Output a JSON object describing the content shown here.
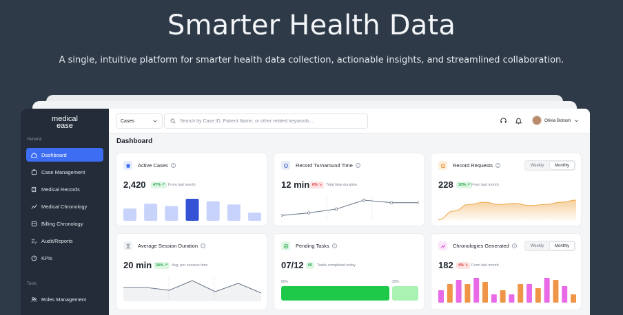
{
  "hero": {
    "title": "Smarter Health Data",
    "subtitle": "A single, intuitive platform for smarter health data collection, actionable insights, and streamlined collaboration."
  },
  "sidebar": {
    "logo_line1": "medical",
    "logo_line2": "ease",
    "section_general": "General",
    "section_tools": "Tools",
    "items": [
      {
        "label": "Dashboard",
        "icon": "home-icon",
        "active": true
      },
      {
        "label": "Case Management",
        "icon": "folder-icon"
      },
      {
        "label": "Medical Records",
        "icon": "records-icon"
      },
      {
        "label": "Medical Chronology",
        "icon": "trend-icon"
      },
      {
        "label": "Billing Chronology",
        "icon": "billing-icon"
      },
      {
        "label": "Audit/Reports",
        "icon": "list-check-icon"
      },
      {
        "label": "KPIs",
        "icon": "gauge-icon"
      }
    ],
    "tools_items": [
      {
        "label": "Roles Management",
        "icon": "users-icon"
      }
    ]
  },
  "topbar": {
    "select_value": "Cases",
    "search_placeholder": "Search by Case ID, Patient Name, or other related keywords...",
    "user_name": "Olivia Botosh"
  },
  "page_title": "Dashboard",
  "colors": {
    "accent": "#3d6df2",
    "bar_light": "#c7d3fb",
    "bar_dark": "#3552d6",
    "line": "#6f7c8c",
    "area_orange": "#f1b15d",
    "green": "#1ec94a",
    "green_light": "#a9f2b2",
    "pink": "#e86ae6",
    "orange": "#ef9548"
  },
  "cards": {
    "active_cases": {
      "title": "Active Cases",
      "value": "2,420",
      "change": "47% ↗",
      "note": "From last month",
      "chart_data": {
        "type": "bar",
        "values": [
          3,
          4.2,
          3.6,
          5.4,
          4.8,
          4,
          2
        ],
        "highlight_index": 3
      }
    },
    "turnaround": {
      "title": "Record Turnaround Time",
      "value": "12 min",
      "change": "6% ↘",
      "note": "Total time duration",
      "chart_data": {
        "type": "line",
        "values": [
          2,
          4,
          7,
          14,
          12,
          12
        ]
      }
    },
    "record_requests": {
      "title": "Record Requests",
      "value": "228",
      "change": "10% ↗",
      "note": "From last month",
      "toggle": [
        "Weekly",
        "Monthly"
      ],
      "chart_data": {
        "type": "area",
        "values": [
          1,
          9,
          15,
          17,
          15,
          16,
          14,
          15,
          17,
          19
        ]
      }
    },
    "avg_session": {
      "title": "Average Session Duration",
      "value": "20 min",
      "change": "34% ↗",
      "note": "Avg. per session time",
      "chart_data": {
        "type": "line",
        "values": [
          8,
          8,
          6,
          13,
          5,
          11,
          4
        ]
      }
    },
    "pending_tasks": {
      "title": "Pending Tasks",
      "value": "07/12",
      "change": "05",
      "note": "Tasks completed today",
      "progress_done_label": "80%",
      "progress_rest_label": "20%",
      "progress_done": 0.8
    },
    "chronologies": {
      "title": "Chronologies Generated",
      "value": "182",
      "change": "4% ↘",
      "note": "From last month",
      "toggle": [
        "Weekly",
        "Monthly"
      ],
      "chart_data": {
        "type": "bar",
        "values": [
          3,
          4.5,
          5.5,
          4.5,
          6,
          5,
          2,
          3,
          2,
          4.5,
          4.5,
          3.5,
          6,
          5.5,
          4,
          2
        ]
      }
    }
  }
}
